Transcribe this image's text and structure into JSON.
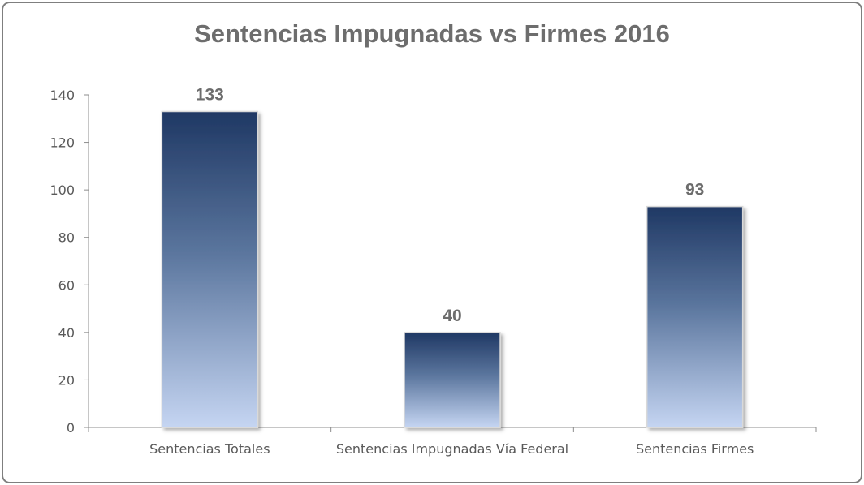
{
  "chart_data": {
    "type": "bar",
    "title": "Sentencias Impugnadas vs Firmes 2016",
    "xlabel": "",
    "ylabel": "",
    "categories": [
      "Sentencias Totales",
      "Sentencias Impugnadas Vía Federal",
      "Sentencias Firmes"
    ],
    "values": [
      133,
      40,
      93
    ],
    "data_labels": [
      "133",
      "40",
      "93"
    ],
    "ylim": [
      0,
      140
    ],
    "yticks": [
      "0",
      "20",
      "40",
      "60",
      "80",
      "100",
      "120",
      "140"
    ],
    "grid": false,
    "legend": "none",
    "colors": {
      "bar_top": "#1f3864",
      "bar_bottom": "#c5d5f2",
      "axis": "#8c8c8c",
      "text": "#595959"
    }
  }
}
